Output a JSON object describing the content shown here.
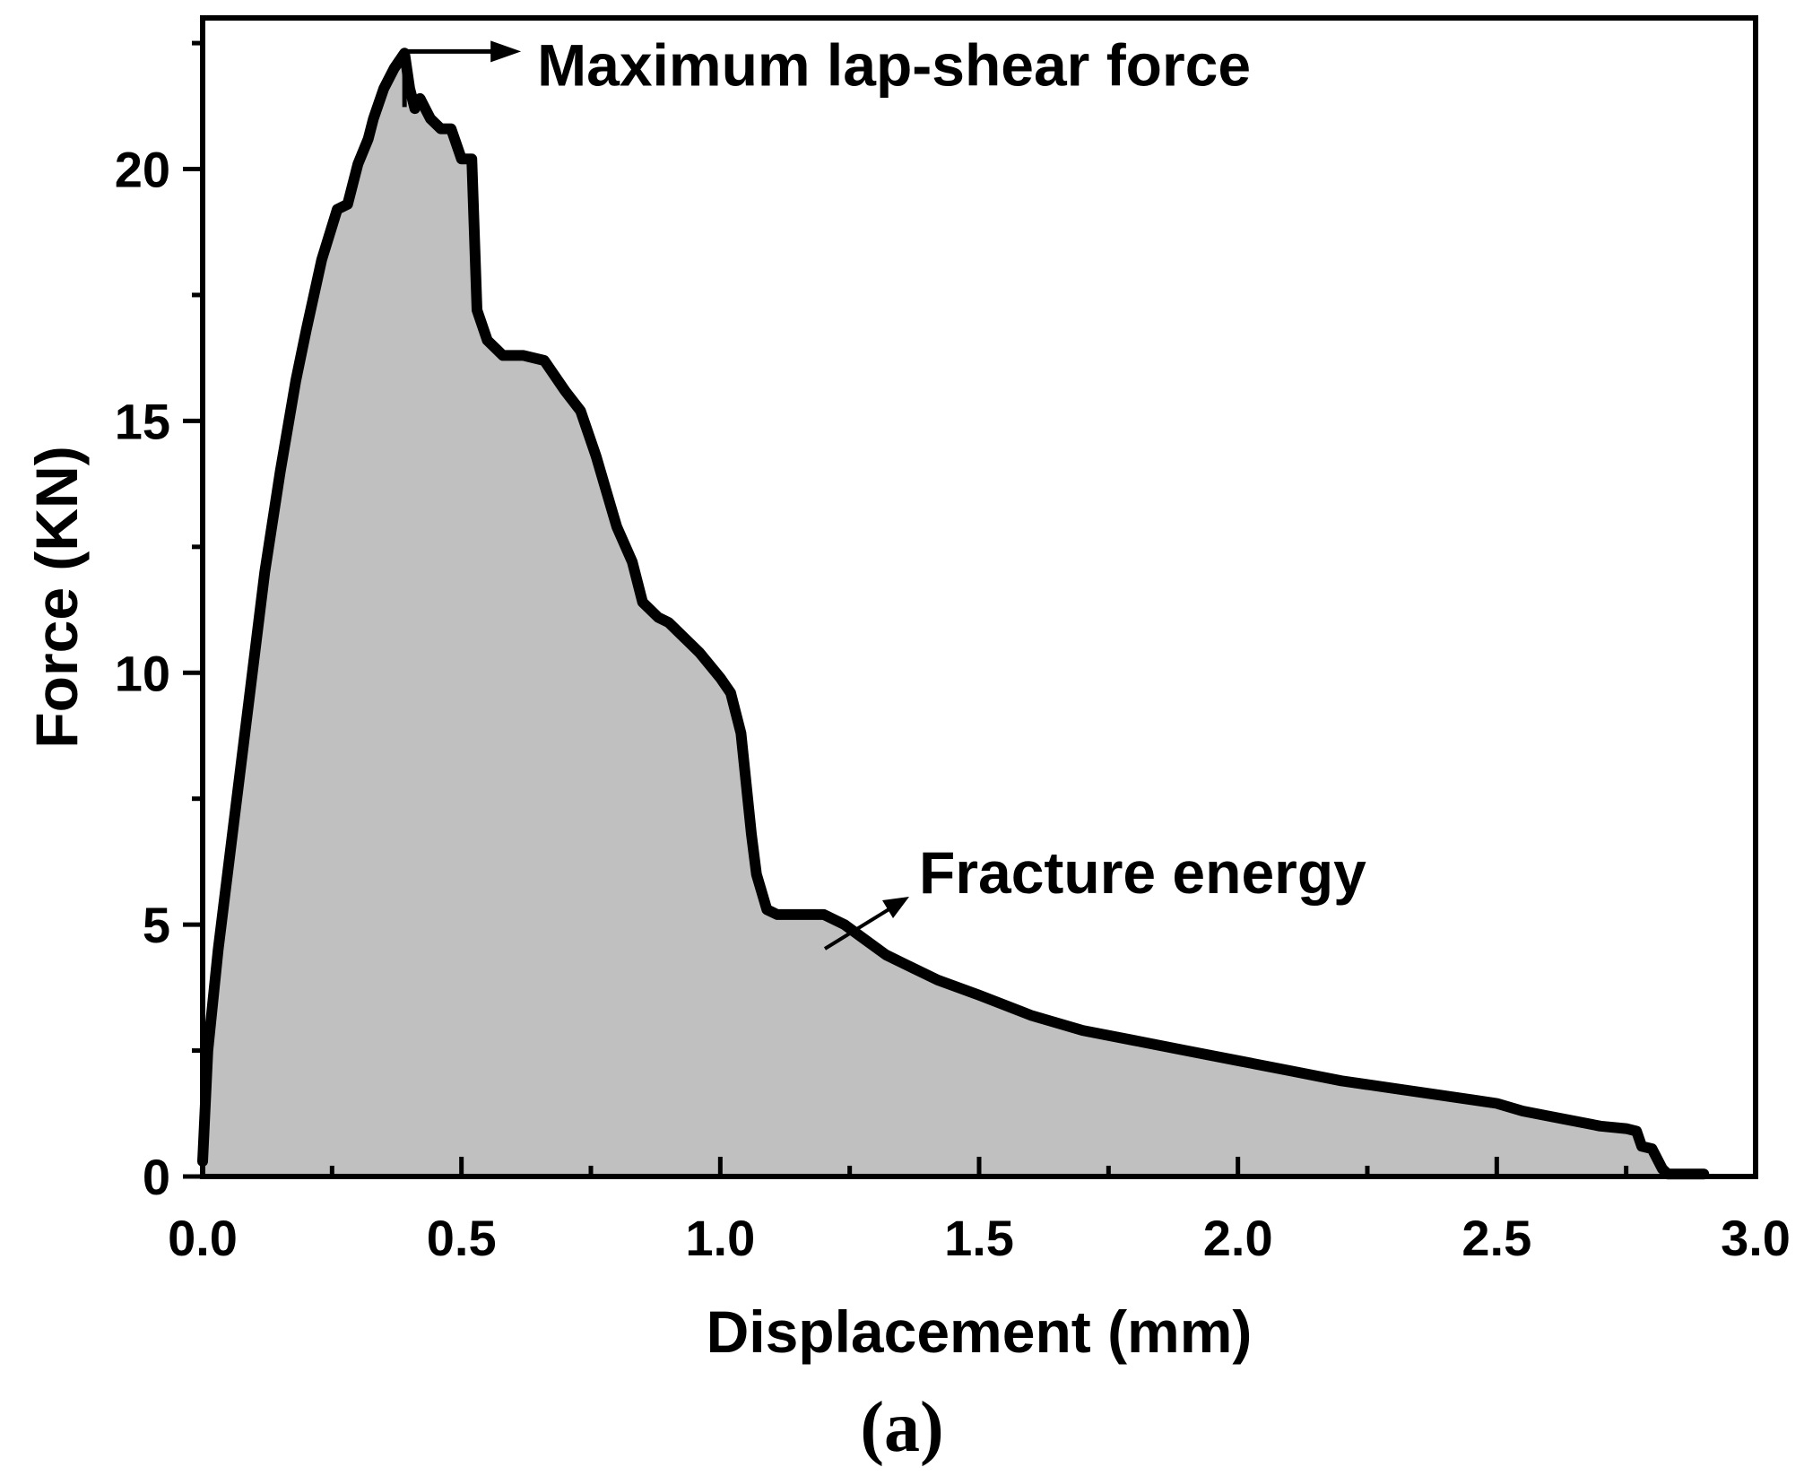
{
  "chart_data": {
    "type": "area",
    "xlabel": "Displacement (mm)",
    "ylabel": "Force (KN)",
    "xlim": [
      0,
      3.0
    ],
    "ylim": [
      0,
      23
    ],
    "xticks": [
      "0.0",
      "0.5",
      "1.0",
      "1.5",
      "2.0",
      "2.5",
      "3.0"
    ],
    "yticks": [
      "0",
      "5",
      "10",
      "15",
      "20"
    ],
    "grid": false,
    "fill_color": "#c0c0c0",
    "line_color": "#000000",
    "panel_label": "(a)",
    "annotations": {
      "peak": "Maximum lap-shear force",
      "area": "Fracture energy"
    },
    "series": [
      {
        "x": [
          0.0,
          0.01,
          0.03,
          0.06,
          0.09,
          0.12,
          0.15,
          0.18,
          0.2,
          0.23,
          0.26,
          0.28,
          0.3,
          0.32,
          0.33,
          0.35,
          0.37,
          0.39,
          0.4,
          0.41,
          0.42,
          0.44,
          0.46,
          0.48,
          0.5,
          0.52,
          0.53,
          0.55,
          0.58,
          0.62,
          0.66,
          0.7,
          0.73,
          0.76,
          0.78,
          0.8,
          0.83,
          0.85,
          0.88,
          0.9,
          0.93,
          0.96,
          1.0,
          1.02,
          1.04,
          1.06,
          1.07,
          1.09,
          1.11,
          1.13,
          1.15,
          1.2,
          1.24,
          1.28,
          1.32,
          1.36,
          1.42,
          1.5,
          1.6,
          1.7,
          1.8,
          1.9,
          2.0,
          2.1,
          2.2,
          2.3,
          2.4,
          2.5,
          2.55,
          2.6,
          2.7,
          2.75,
          2.77,
          2.78,
          2.8,
          2.82,
          2.83,
          2.9
        ],
        "y": [
          0.3,
          2.5,
          4.5,
          7.0,
          9.5,
          12.0,
          14.0,
          15.8,
          16.8,
          18.2,
          19.2,
          19.3,
          20.1,
          20.6,
          21.0,
          21.6,
          22.0,
          22.3,
          21.6,
          21.2,
          21.4,
          21.0,
          20.8,
          20.8,
          20.2,
          20.2,
          17.2,
          16.6,
          16.3,
          16.3,
          16.2,
          15.6,
          15.2,
          14.3,
          13.6,
          12.9,
          12.2,
          11.4,
          11.1,
          11.0,
          10.7,
          10.4,
          9.9,
          9.6,
          8.8,
          6.8,
          6.0,
          5.3,
          5.2,
          5.2,
          5.2,
          5.2,
          5.0,
          4.7,
          4.4,
          4.2,
          3.9,
          3.6,
          3.2,
          2.9,
          2.7,
          2.5,
          2.3,
          2.1,
          1.9,
          1.75,
          1.6,
          1.45,
          1.3,
          1.2,
          1.0,
          0.95,
          0.9,
          0.6,
          0.55,
          0.15,
          0.05,
          0.05
        ]
      }
    ]
  }
}
